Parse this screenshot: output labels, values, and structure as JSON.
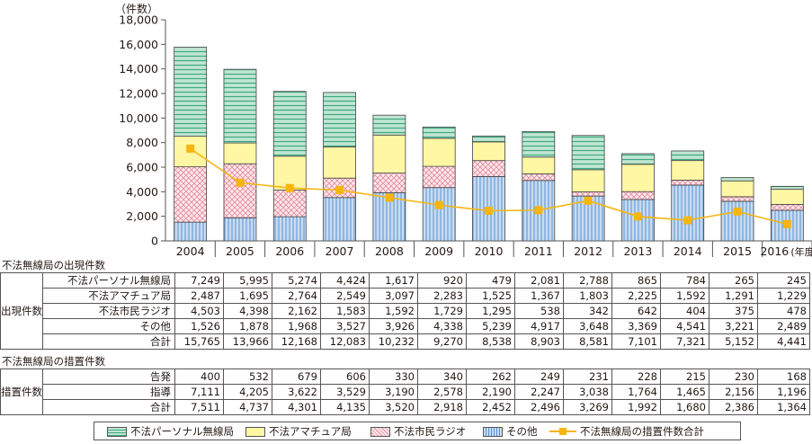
{
  "chart_data": {
    "type": "bar",
    "stacked": true,
    "y_unit": "（件数）",
    "x_unit": "(年度)",
    "ylim": [
      0,
      18000
    ],
    "yticks": [
      0,
      2000,
      4000,
      6000,
      8000,
      10000,
      12000,
      14000,
      16000,
      18000
    ],
    "ytick_labels": [
      "0",
      "2,000",
      "4,000",
      "6,000",
      "8,000",
      "10,000",
      "12,000",
      "14,000",
      "16,000",
      "18,000"
    ],
    "categories": [
      "2004",
      "2005",
      "2006",
      "2007",
      "2008",
      "2009",
      "2010",
      "2011",
      "2012",
      "2013",
      "2014",
      "2015",
      "2016"
    ],
    "series": [
      {
        "name": "その他",
        "values": [
          1526,
          1878,
          1968,
          3527,
          3926,
          4338,
          5239,
          4917,
          3648,
          3369,
          4541,
          3221,
          2489
        ],
        "color": "#a9c7ea"
      },
      {
        "name": "不法市民ラジオ",
        "values": [
          4503,
          4398,
          2162,
          1583,
          1592,
          1729,
          1295,
          538,
          342,
          642,
          404,
          375,
          478
        ],
        "color": "#fbd8df"
      },
      {
        "name": "不法アマチュア局",
        "values": [
          2487,
          1695,
          2764,
          2549,
          3097,
          2283,
          1525,
          1367,
          1803,
          2225,
          1592,
          1291,
          1229
        ],
        "color": "#fff7a3"
      },
      {
        "name": "不法パーソナル無線局",
        "values": [
          7249,
          5995,
          5274,
          4424,
          1617,
          920,
          479,
          2081,
          2788,
          865,
          784,
          265,
          245
        ],
        "color": "#bfe6d2"
      }
    ],
    "line": {
      "name": "不法無線局の措置件数合計",
      "values": [
        7511,
        4737,
        4301,
        4135,
        3520,
        2918,
        2452,
        2496,
        3269,
        1992,
        1680,
        2386,
        1364
      ],
      "color": "#f6b50f"
    }
  },
  "table1": {
    "caption": "不法無線局の出現件数",
    "group": "出現件数",
    "rows": [
      {
        "label": "不法パーソナル無線局",
        "values": [
          "7,249",
          "5,995",
          "5,274",
          "4,424",
          "1,617",
          "920",
          "479",
          "2,081",
          "2,788",
          "865",
          "784",
          "265",
          "245"
        ]
      },
      {
        "label": "不法アマチュア局",
        "values": [
          "2,487",
          "1,695",
          "2,764",
          "2,549",
          "3,097",
          "2,283",
          "1,525",
          "1,367",
          "1,803",
          "2,225",
          "1,592",
          "1,291",
          "1,229"
        ]
      },
      {
        "label": "不法市民ラジオ",
        "values": [
          "4,503",
          "4,398",
          "2,162",
          "1,583",
          "1,592",
          "1,729",
          "1,295",
          "538",
          "342",
          "642",
          "404",
          "375",
          "478"
        ]
      },
      {
        "label": "その他",
        "values": [
          "1,526",
          "1,878",
          "1,968",
          "3,527",
          "3,926",
          "4,338",
          "5,239",
          "4,917",
          "3,648",
          "3,369",
          "4,541",
          "3,221",
          "2,489"
        ]
      },
      {
        "label": "合計",
        "values": [
          "15,765",
          "13,966",
          "12,168",
          "12,083",
          "10,232",
          "9,270",
          "8,538",
          "8,903",
          "8,581",
          "7,101",
          "7,321",
          "5,152",
          "4,441"
        ]
      }
    ]
  },
  "table2": {
    "caption": "不法無線局の措置件数",
    "group": "措置件数",
    "rows": [
      {
        "label": "告発",
        "values": [
          "400",
          "532",
          "679",
          "606",
          "330",
          "340",
          "262",
          "249",
          "231",
          "228",
          "215",
          "230",
          "168"
        ]
      },
      {
        "label": "指導",
        "values": [
          "7,111",
          "4,205",
          "3,622",
          "3,529",
          "3,190",
          "2,578",
          "2,190",
          "2,247",
          "3,038",
          "1,764",
          "1,465",
          "2,156",
          "1,196"
        ]
      },
      {
        "label": "合計",
        "values": [
          "7,511",
          "4,737",
          "4,301",
          "4,135",
          "3,520",
          "2,918",
          "2,452",
          "2,496",
          "3,269",
          "1,992",
          "1,680",
          "2,386",
          "1,364"
        ]
      }
    ]
  },
  "legend": {
    "items": [
      "不法パーソナル無線局",
      "不法アマチュア局",
      "不法市民ラジオ",
      "その他",
      "不法無線局の措置件数合計"
    ]
  }
}
